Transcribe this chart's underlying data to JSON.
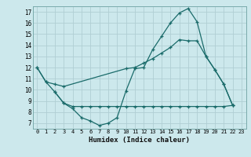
{
  "xlabel": "Humidex (Indice chaleur)",
  "bg_color": "#cce8ec",
  "grid_color": "#b0ced4",
  "line_color": "#1a6b6a",
  "xlim": [
    -0.5,
    23.5
  ],
  "ylim": [
    6.5,
    17.5
  ],
  "xticks": [
    0,
    1,
    2,
    3,
    4,
    5,
    6,
    7,
    8,
    9,
    10,
    11,
    12,
    13,
    14,
    15,
    16,
    17,
    18,
    19,
    20,
    21,
    22,
    23
  ],
  "yticks": [
    7,
    8,
    9,
    10,
    11,
    12,
    13,
    14,
    15,
    16,
    17
  ],
  "line1_x": [
    0,
    1,
    2,
    3,
    4,
    5,
    6,
    7,
    8,
    9,
    10,
    11,
    12,
    13,
    14,
    15,
    16,
    17,
    18,
    19,
    20,
    21,
    22
  ],
  "line1_y": [
    12.0,
    10.7,
    9.8,
    8.8,
    8.3,
    7.5,
    7.2,
    6.8,
    7.0,
    7.5,
    9.9,
    11.9,
    12.0,
    13.6,
    14.8,
    16.0,
    16.9,
    17.3,
    16.1,
    13.0,
    11.8,
    10.5,
    8.6
  ],
  "line2_x": [
    0,
    1,
    2,
    3,
    10,
    11,
    12,
    13,
    14,
    15,
    16,
    17,
    18,
    19,
    20,
    21,
    22
  ],
  "line2_y": [
    12.0,
    10.7,
    10.5,
    10.3,
    11.9,
    12.0,
    12.4,
    12.8,
    13.3,
    13.8,
    14.5,
    14.4,
    14.4,
    13.0,
    11.8,
    10.5,
    8.6
  ],
  "line3_x": [
    2,
    3,
    4,
    5,
    6,
    7,
    8,
    9,
    10,
    11,
    12,
    13,
    14,
    15,
    16,
    17,
    18,
    19,
    20,
    21,
    22
  ],
  "line3_y": [
    9.8,
    8.8,
    8.5,
    8.5,
    8.5,
    8.5,
    8.5,
    8.5,
    8.5,
    8.5,
    8.5,
    8.5,
    8.5,
    8.5,
    8.5,
    8.5,
    8.5,
    8.5,
    8.5,
    8.5,
    8.6
  ]
}
